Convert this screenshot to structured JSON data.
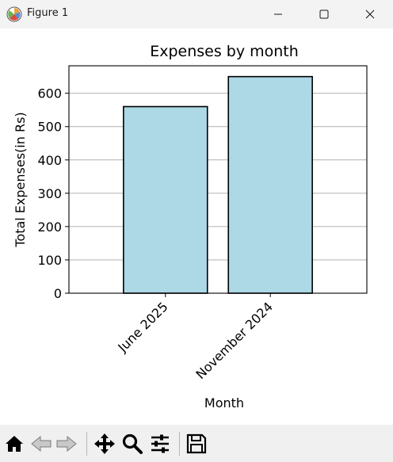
{
  "window": {
    "title": "Figure 1"
  },
  "toolbar": {
    "buttons": [
      "home-icon",
      "back-icon",
      "forward-icon",
      "pan-icon",
      "zoom-icon",
      "configure-subplots-icon",
      "save-icon"
    ]
  },
  "chart_data": {
    "type": "bar",
    "title": "Expenses by month",
    "xlabel": "Month",
    "ylabel": "Total Expenses(in Rs)",
    "categories": [
      "June 2025",
      "November 2024"
    ],
    "values": [
      560,
      650
    ],
    "ylim": [
      0,
      682.5
    ],
    "yticks": [
      0,
      100,
      200,
      300,
      400,
      500,
      600
    ],
    "grid": "y",
    "bar_color": "#add8e6",
    "edge_color": "#000000",
    "xtick_rotation": 45
  }
}
